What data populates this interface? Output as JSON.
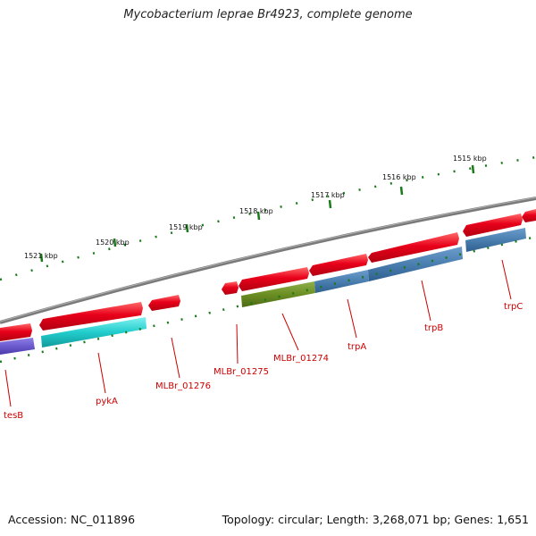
{
  "title": "Mycobacterium leprae Br4923, complete genome",
  "footer": {
    "accession": "Accession: NC_011896",
    "summary": "Topology: circular; Length: 3,268,071 bp; Genes: 1,651"
  },
  "scale_labels": [
    "1521 kbp",
    "1520 kbp",
    "1519 kbp",
    "1518 kbp",
    "1517 kbp",
    "1516 kbp",
    "1515 kbp"
  ],
  "gene_labels": [
    "tesB",
    "pykA",
    "MLBr_01276",
    "MLBr_01275",
    "MLBr_01274",
    "trpA",
    "trpB",
    "trpC"
  ],
  "colors": {
    "backbone": "#7a7a7a",
    "gene_forward": "#e8001a",
    "label": "#cc0000",
    "tick": "#1a7a1a",
    "tesB": "#6a5acd",
    "pykA": "#22cccc",
    "MLBr_01274": "#6b8e23",
    "trp": "#4a7fb0"
  }
}
